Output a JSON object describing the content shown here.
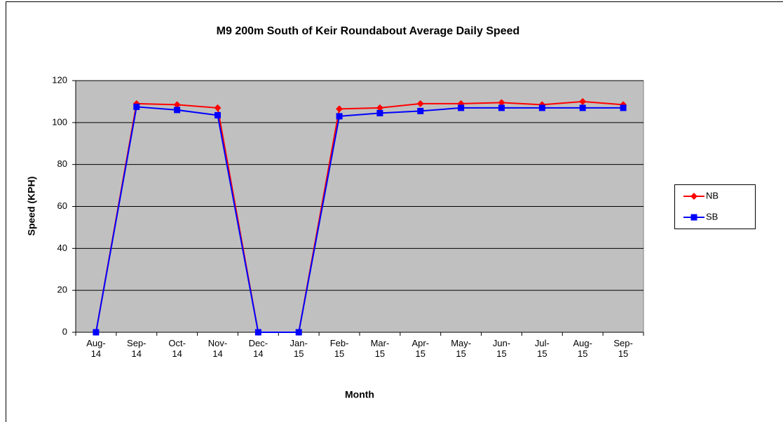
{
  "chart_data": {
    "type": "line",
    "title": "M9 200m South of Keir Roundabout Average Daily Speed",
    "x_label": "Month",
    "y_label": "Speed (KPH)",
    "categories": [
      "Aug-14",
      "Sep-14",
      "Oct-14",
      "Nov-14",
      "Dec-14",
      "Jan-15",
      "Feb-15",
      "Mar-15",
      "Apr-15",
      "May-15",
      "Jun-15",
      "Jul-15",
      "Aug-15",
      "Sep-15"
    ],
    "series": [
      {
        "name": "NB",
        "color": "#ff0000",
        "marker": "diamond",
        "values": [
          0,
          109,
          108.5,
          107,
          0,
          0,
          106.5,
          107,
          109,
          109,
          109.5,
          108.5,
          110,
          108.5
        ]
      },
      {
        "name": "SB",
        "color": "#0000ff",
        "marker": "square",
        "values": [
          0,
          107.5,
          106,
          103.5,
          0,
          0,
          103,
          104.5,
          105.5,
          107,
          107,
          107,
          107,
          107
        ]
      }
    ],
    "ylim": [
      0,
      120
    ],
    "yticks": [
      0,
      20,
      40,
      60,
      80,
      100,
      120
    ],
    "grid": true,
    "legend": "right"
  }
}
